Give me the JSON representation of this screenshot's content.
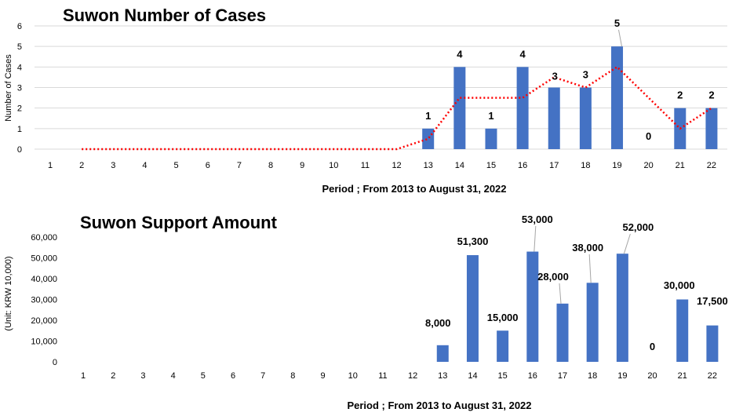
{
  "chart_data": [
    {
      "type": "bar",
      "title": "Suwon Number of Cases",
      "xlabel": "Period ; From 2013 to August 31, 2022",
      "ylabel": "Number of Cases",
      "categories": [
        "1",
        "2",
        "3",
        "4",
        "5",
        "6",
        "7",
        "8",
        "9",
        "10",
        "11",
        "12",
        "13",
        "14",
        "15",
        "16",
        "17",
        "18",
        "19",
        "20",
        "21",
        "22"
      ],
      "values": [
        0,
        0,
        0,
        0,
        0,
        0,
        0,
        0,
        0,
        0,
        0,
        0,
        1,
        4,
        1,
        4,
        3,
        3,
        5,
        0,
        2,
        2
      ],
      "data_labels": [
        {
          "category": "13",
          "label": "1"
        },
        {
          "category": "14",
          "label": "4"
        },
        {
          "category": "15",
          "label": "1"
        },
        {
          "category": "16",
          "label": "4"
        },
        {
          "category": "17",
          "label": "3"
        },
        {
          "category": "18",
          "label": "3"
        },
        {
          "category": "19",
          "label": "5"
        },
        {
          "category": "20",
          "label": "0"
        },
        {
          "category": "21",
          "label": "2"
        },
        {
          "category": "22",
          "label": "2"
        }
      ],
      "trendline": {
        "name": "moving average",
        "color": "#ff0000",
        "start_category": "2",
        "values": [
          0,
          0,
          0,
          0,
          0,
          0,
          0,
          0,
          0,
          0,
          0,
          0.5,
          2.5,
          2.5,
          2.5,
          3.5,
          3,
          4,
          2.5,
          1,
          2
        ]
      },
      "ylim": [
        0,
        6
      ],
      "yticks": [
        "0",
        "1",
        "2",
        "3",
        "4",
        "5",
        "6"
      ],
      "grid": true,
      "bar_color": "#4472c4"
    },
    {
      "type": "bar",
      "title": "Suwon Support Amount",
      "xlabel": "Period ; From 2013 to August 31, 2022",
      "ylabel": "(Unit: KRW 10,000)",
      "categories": [
        "1",
        "2",
        "3",
        "4",
        "5",
        "6",
        "7",
        "8",
        "9",
        "10",
        "11",
        "12",
        "13",
        "14",
        "15",
        "16",
        "17",
        "18",
        "19",
        "20",
        "21",
        "22"
      ],
      "values": [
        0,
        0,
        0,
        0,
        0,
        0,
        0,
        0,
        0,
        0,
        0,
        0,
        8000,
        51300,
        15000,
        53000,
        28000,
        38000,
        52000,
        0,
        30000,
        17500
      ],
      "data_labels": [
        {
          "category": "13",
          "label": "8,000"
        },
        {
          "category": "14",
          "label": "51,300"
        },
        {
          "category": "15",
          "label": "15,000"
        },
        {
          "category": "16",
          "label": "53,000"
        },
        {
          "category": "17",
          "label": "28,000"
        },
        {
          "category": "18",
          "label": "38,000"
        },
        {
          "category": "19",
          "label": "52,000"
        },
        {
          "category": "20",
          "label": "0"
        },
        {
          "category": "21",
          "label": "30,000"
        },
        {
          "category": "22",
          "label": "17,500"
        }
      ],
      "ylim": [
        0,
        60000
      ],
      "yticks": [
        "0",
        "10,000",
        "20,000",
        "30,000",
        "40,000",
        "50,000",
        "60,000"
      ],
      "grid": false,
      "bar_color": "#4472c4"
    }
  ]
}
